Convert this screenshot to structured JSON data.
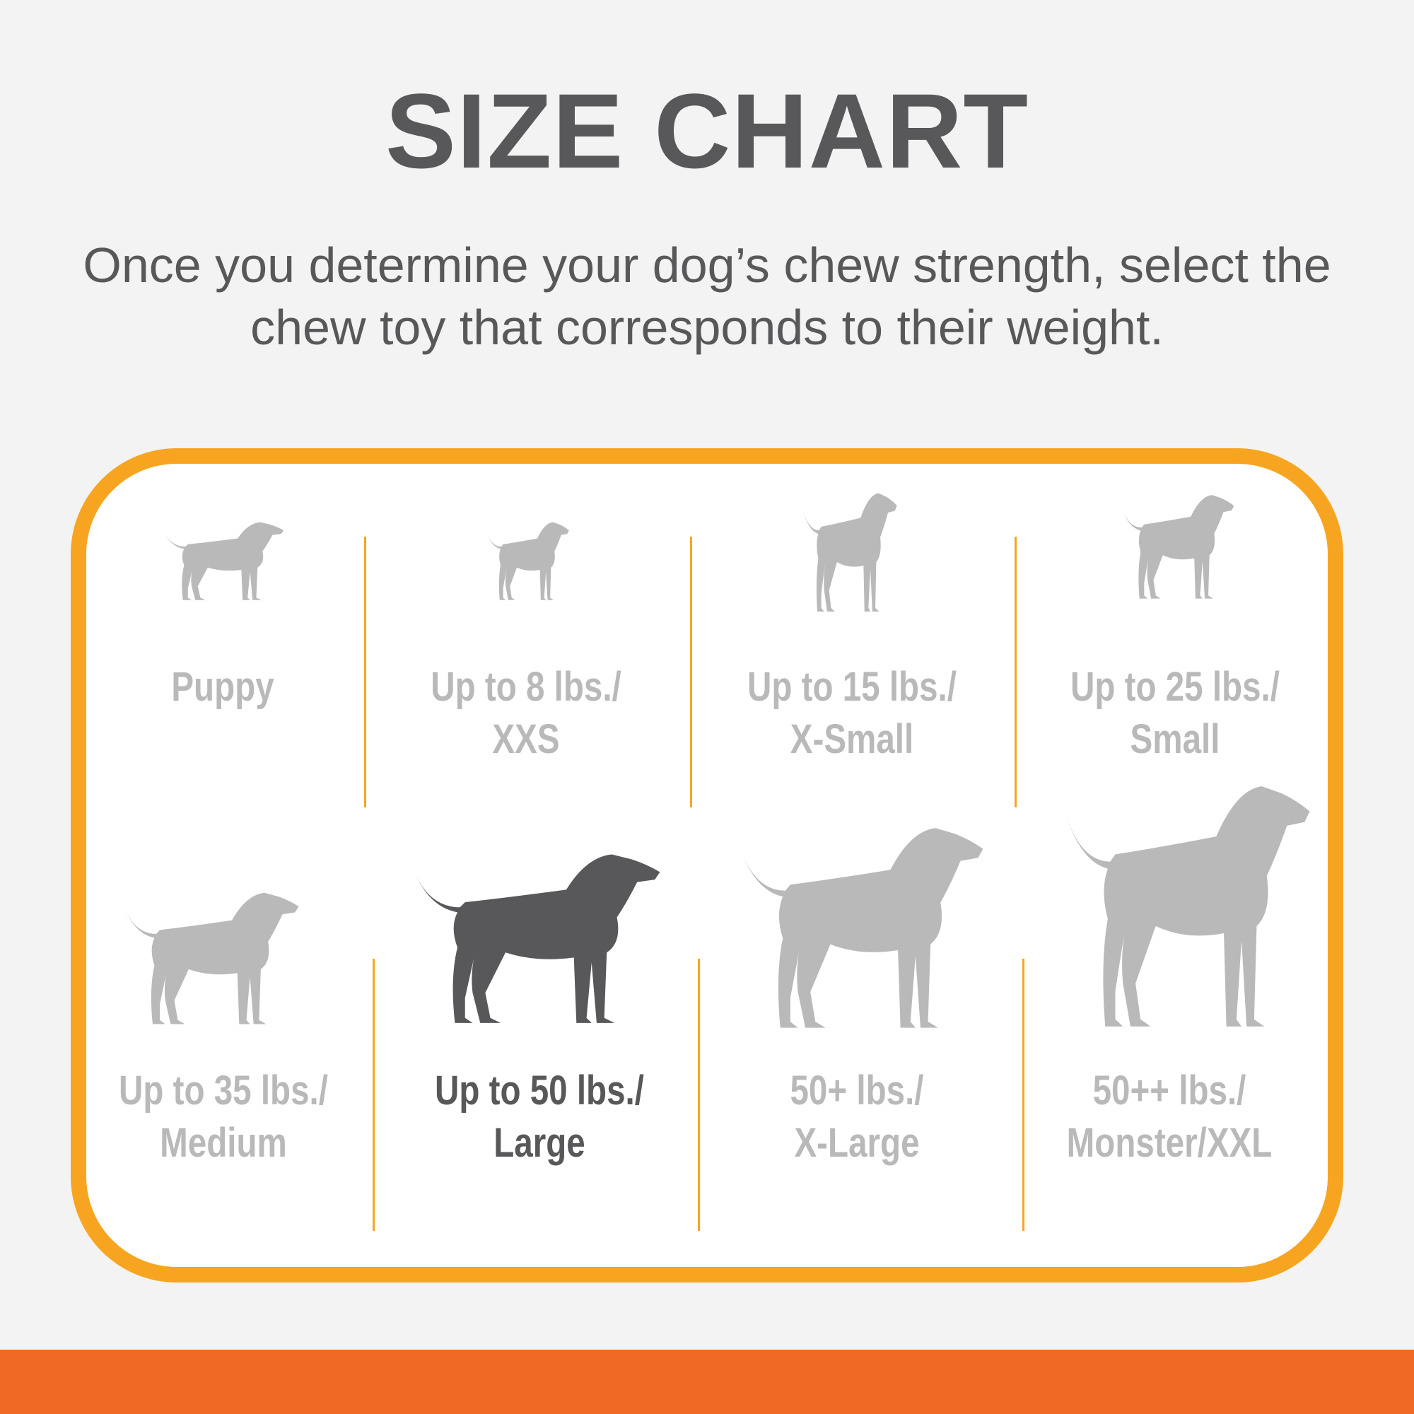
{
  "title": "SIZE CHART",
  "subtitle": {
    "line1": "Once you determine your dog’s chew strength, select the",
    "line2": "chew toy that corresponds to their weight."
  },
  "colors": {
    "text": "#58585a",
    "inactive": "#b9b9b9",
    "border": "#f7a521",
    "bottom_bar": "#f06a25"
  },
  "sizes": [
    {
      "line1": "Puppy",
      "line2": "",
      "icon": "puppy-icon",
      "highlighted": false
    },
    {
      "line1": "Up to 8 lbs./",
      "line2": "XXS",
      "icon": "chihuahua-icon",
      "highlighted": false
    },
    {
      "line1": "Up to 15 lbs./",
      "line2": "X-Small",
      "icon": "small-terrier-icon",
      "highlighted": false
    },
    {
      "line1": "Up to 25 lbs./",
      "line2": "Small",
      "icon": "yorkie-icon",
      "highlighted": false
    },
    {
      "line1": "Up to 35 lbs./",
      "line2": "Medium",
      "icon": "beagle-icon",
      "highlighted": false
    },
    {
      "line1": "Up to 50 lbs./",
      "line2": "Large",
      "icon": "labrador-icon",
      "highlighted": true
    },
    {
      "line1": "50+ lbs./",
      "line2": "X-Large",
      "icon": "shepherd-icon",
      "highlighted": false
    },
    {
      "line1": "50++ lbs./",
      "line2": "Monster/XXL",
      "icon": "great-dane-icon",
      "highlighted": false
    }
  ]
}
